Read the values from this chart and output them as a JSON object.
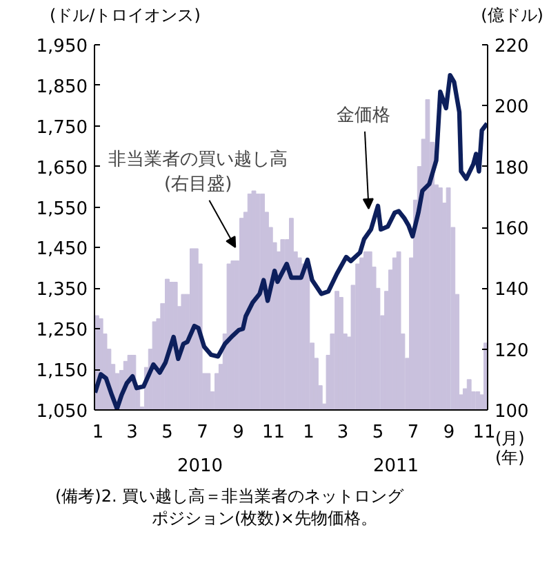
{
  "chart_data": {
    "type": "bar",
    "xlim": [
      "2009-12-26",
      "2011-11-07"
    ],
    "xticks": [
      {
        "value": "2010-01",
        "label": "1"
      },
      {
        "value": "2010-03",
        "label": "3"
      },
      {
        "value": "2010-05",
        "label": "5"
      },
      {
        "value": "2010-07",
        "label": "7"
      },
      {
        "value": "2010-09",
        "label": "9"
      },
      {
        "value": "2010-11",
        "label": "11"
      },
      {
        "value": "2011-01",
        "label": "1"
      },
      {
        "value": "2011-03",
        "label": "3"
      },
      {
        "value": "2011-05",
        "label": "5"
      },
      {
        "value": "2011-07",
        "label": "7"
      },
      {
        "value": "2011-09",
        "label": "9"
      },
      {
        "value": "2011-11",
        "label": "11"
      }
    ],
    "xlabel": "(月)\n(年)",
    "ylabel": "(ドル/トロイオンス)",
    "y2label": "(億ドル)",
    "ylim": [
      1050,
      1950
    ],
    "yticks": [
      {
        "value": 1050,
        "label": "1,050"
      },
      {
        "value": 1150,
        "label": "1,150"
      },
      {
        "value": 1250,
        "label": "1,250"
      },
      {
        "value": 1350,
        "label": "1,350"
      },
      {
        "value": 1450,
        "label": "1,450"
      },
      {
        "value": 1550,
        "label": "1,550"
      },
      {
        "value": 1650,
        "label": "1,650"
      },
      {
        "value": 1750,
        "label": "1,750"
      },
      {
        "value": 1850,
        "label": "1,850"
      },
      {
        "value": 1950,
        "label": "1,950"
      }
    ],
    "y2lim": [
      100,
      220
    ],
    "y2ticks": [
      100,
      120,
      140,
      160,
      180,
      200,
      220
    ],
    "series": [
      {
        "axis": "y2",
        "color": "#c9c1dd",
        "x": [
          "2009-12-30",
          "2010-01-06",
          "2010-01-13",
          "2010-01-20",
          "2010-01-27",
          "2010-02-03",
          "2010-02-11",
          "2010-02-18",
          "2010-02-25",
          "2010-03-04",
          "2010-03-11",
          "2010-03-18",
          "2010-03-26",
          "2010-04-02",
          "2010-04-09",
          "2010-04-16",
          "2010-04-23",
          "2010-05-01",
          "2010-05-08",
          "2010-05-15",
          "2010-05-22",
          "2010-05-29",
          "2010-06-05",
          "2010-06-13",
          "2010-06-20",
          "2010-06-27",
          "2010-07-04",
          "2010-07-11",
          "2010-07-18",
          "2010-07-26",
          "2010-08-02",
          "2010-08-09",
          "2010-08-16",
          "2010-08-23",
          "2010-08-30",
          "2010-09-07",
          "2010-09-14",
          "2010-09-21",
          "2010-09-28",
          "2010-10-05",
          "2010-10-13",
          "2010-10-20",
          "2010-10-27",
          "2010-11-03",
          "2010-11-10",
          "2010-11-17",
          "2010-11-25",
          "2010-12-02",
          "2010-12-09",
          "2010-12-16",
          "2010-12-23",
          "2010-12-30",
          "2011-01-07",
          "2011-01-14",
          "2011-01-21",
          "2011-01-28",
          "2011-02-04",
          "2011-02-11",
          "2011-02-19",
          "2011-02-26",
          "2011-03-05",
          "2011-03-12",
          "2011-03-19",
          "2011-03-27",
          "2011-04-03",
          "2011-04-10",
          "2011-04-17",
          "2011-04-24",
          "2011-05-01",
          "2011-05-09",
          "2011-05-16",
          "2011-05-23",
          "2011-05-30",
          "2011-06-06",
          "2011-06-13",
          "2011-06-21",
          "2011-06-28",
          "2011-07-05",
          "2011-07-12",
          "2011-07-19",
          "2011-07-26",
          "2011-08-03",
          "2011-08-10",
          "2011-08-17",
          "2011-08-24",
          "2011-08-31",
          "2011-09-08",
          "2011-09-15",
          "2011-09-22",
          "2011-09-29",
          "2011-10-06",
          "2011-10-13",
          "2011-10-21",
          "2011-10-28",
          "2011-11-04"
        ],
        "values": [
          131,
          130,
          125,
          120,
          115,
          112,
          113,
          116,
          118,
          118,
          107,
          101,
          114,
          120,
          129,
          130,
          135,
          143,
          142,
          142,
          134,
          138,
          138,
          153,
          153,
          148,
          112,
          112,
          106,
          112,
          115,
          125,
          148,
          149,
          149,
          163,
          165,
          171,
          172,
          171,
          171,
          165,
          160,
          155,
          152,
          156,
          156,
          163,
          152,
          150,
          148,
          148,
          122,
          117,
          108,
          102,
          118,
          125,
          139,
          137,
          125,
          124,
          141,
          148,
          150,
          152,
          152,
          147,
          140,
          131,
          139,
          146,
          150,
          152,
          125,
          117,
          150,
          169,
          180,
          189,
          202,
          188,
          174,
          173,
          168,
          173,
          160,
          138,
          105,
          107,
          110,
          106,
          106,
          105,
          122
        ]
      },
      {
        "type": "line",
        "color": "#0d1f5c",
        "x": [
          "2009-12-27",
          "2010-01-06",
          "2010-01-15",
          "2010-01-25",
          "2010-02-03",
          "2010-02-11",
          "2010-02-20",
          "2010-03-02",
          "2010-03-09",
          "2010-03-21",
          "2010-04-07",
          "2010-04-18",
          "2010-04-28",
          "2010-05-12",
          "2010-05-20",
          "2010-05-29",
          "2010-06-05",
          "2010-06-17",
          "2010-06-24",
          "2010-07-04",
          "2010-07-16",
          "2010-07-28",
          "2010-08-09",
          "2010-08-21",
          "2010-09-02",
          "2010-09-09",
          "2010-09-14",
          "2010-09-26",
          "2010-10-08",
          "2010-10-15",
          "2010-10-22",
          "2010-11-03",
          "2010-11-08",
          "2010-11-24",
          "2010-12-02",
          "2010-12-19",
          "2010-12-30",
          "2011-01-07",
          "2011-01-23",
          "2011-02-04",
          "2011-02-19",
          "2011-03-07",
          "2011-03-15",
          "2011-03-31",
          "2011-04-07",
          "2011-04-19",
          "2011-05-01",
          "2011-05-06",
          "2011-05-18",
          "2011-05-30",
          "2011-06-06",
          "2011-06-16",
          "2011-06-23",
          "2011-06-30",
          "2011-07-10",
          "2011-07-17",
          "2011-07-29",
          "2011-08-10",
          "2011-08-17",
          "2011-08-27",
          "2011-09-03",
          "2011-09-10",
          "2011-09-19",
          "2011-09-22",
          "2011-10-01",
          "2011-10-13",
          "2011-10-18",
          "2011-10-23",
          "2011-10-28",
          "2011-11-06"
        ],
        "values": [
          1093,
          1138,
          1128,
          1087,
          1053,
          1087,
          1116,
          1133,
          1104,
          1108,
          1162,
          1142,
          1167,
          1230,
          1176,
          1213,
          1218,
          1257,
          1252,
          1206,
          1186,
          1182,
          1213,
          1231,
          1247,
          1250,
          1281,
          1315,
          1336,
          1370,
          1319,
          1393,
          1366,
          1410,
          1376,
          1376,
          1420,
          1370,
          1336,
          1342,
          1386,
          1427,
          1417,
          1438,
          1471,
          1495,
          1553,
          1495,
          1502,
          1536,
          1540,
          1522,
          1505,
          1478,
          1536,
          1590,
          1607,
          1665,
          1834,
          1794,
          1875,
          1858,
          1784,
          1638,
          1620,
          1655,
          1681,
          1638,
          1739,
          1756
        ]
      }
    ],
    "annotations": [
      {
        "text": "非当業者の買い越し高\n(右目盛)",
        "x": "2010-08-27",
        "y": 1451
      },
      {
        "text": "金価格",
        "x": "2011-04-15",
        "y": 1546
      },
      "2010",
      "2011",
      "(備考)2. 買い越し高＝非当業者のネットロング",
      "ポジション(枚数)×先物価格。"
    ]
  }
}
